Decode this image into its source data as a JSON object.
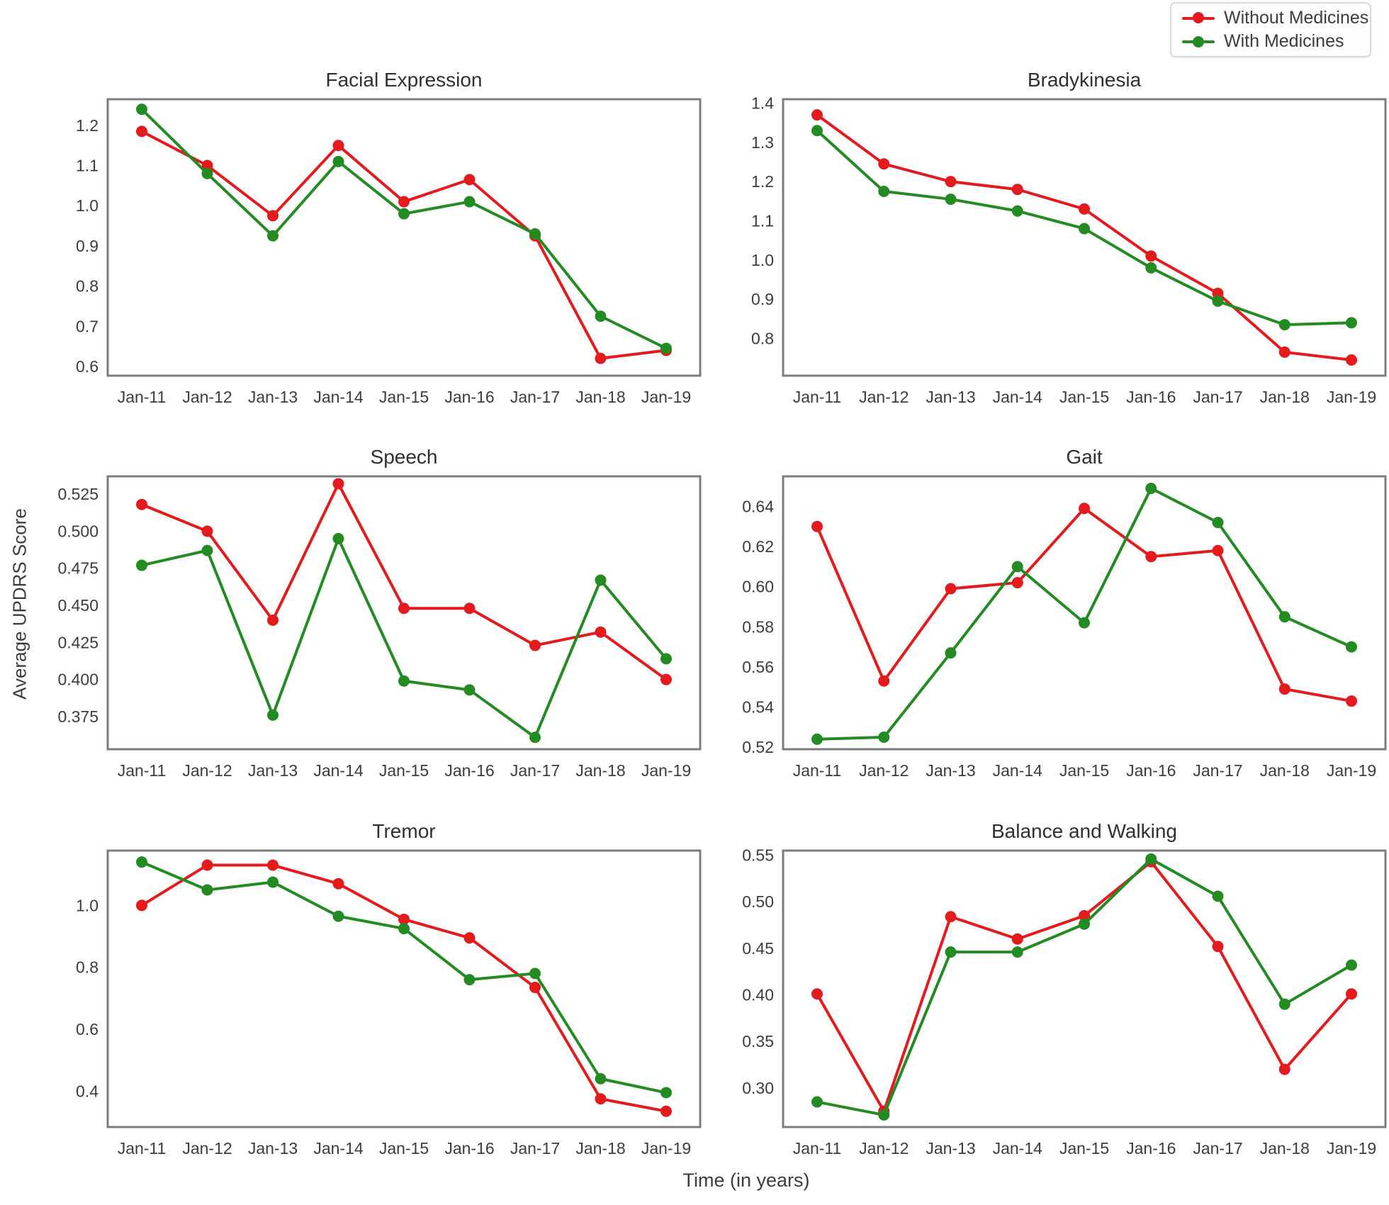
{
  "figure": {
    "background": "#ffffff",
    "legend": {
      "items": [
        {
          "label": "Without Medicines",
          "color": "#e41a1c"
        },
        {
          "label": "With Medicines",
          "color": "#228b22"
        }
      ],
      "position": "top-right"
    },
    "axes": {
      "y_label": "Average UPDRS Score",
      "x_label": "Time (in years)"
    }
  },
  "chart_data": [
    {
      "type": "line",
      "title": "Facial Expression",
      "categories": [
        "Jan-11",
        "Jan-12",
        "Jan-13",
        "Jan-14",
        "Jan-15",
        "Jan-16",
        "Jan-17",
        "Jan-18",
        "Jan-19"
      ],
      "yticks": [
        "1.2",
        "1.1",
        "1.0",
        "0.9",
        "0.8",
        "0.7",
        "0.6"
      ],
      "ylim": [
        0.577,
        1.265
      ],
      "grid": false,
      "series": [
        {
          "name": "Without Medicines",
          "color": "#e41a1c",
          "values": [
            1.185,
            1.1,
            0.975,
            1.15,
            1.01,
            1.065,
            0.925,
            0.62,
            0.64
          ]
        },
        {
          "name": "With Medicines",
          "color": "#228b22",
          "values": [
            1.24,
            1.08,
            0.925,
            1.11,
            0.98,
            1.01,
            0.93,
            0.725,
            0.645
          ]
        }
      ]
    },
    {
      "type": "line",
      "title": "Bradykinesia",
      "categories": [
        "Jan-11",
        "Jan-12",
        "Jan-13",
        "Jan-14",
        "Jan-15",
        "Jan-16",
        "Jan-17",
        "Jan-18",
        "Jan-19"
      ],
      "yticks": [
        "1.4",
        "1.3",
        "1.2",
        "1.1",
        "1.0",
        "0.9",
        "0.8"
      ],
      "ylim": [
        0.705,
        1.41
      ],
      "grid": false,
      "series": [
        {
          "name": "Without Medicines",
          "color": "#e41a1c",
          "values": [
            1.37,
            1.245,
            1.2,
            1.18,
            1.13,
            1.01,
            0.915,
            0.765,
            0.745
          ]
        },
        {
          "name": "With Medicines",
          "color": "#228b22",
          "values": [
            1.33,
            1.175,
            1.155,
            1.125,
            1.08,
            0.98,
            0.895,
            0.835,
            0.84
          ]
        }
      ]
    },
    {
      "type": "line",
      "title": "Speech",
      "categories": [
        "Jan-11",
        "Jan-12",
        "Jan-13",
        "Jan-14",
        "Jan-15",
        "Jan-16",
        "Jan-17",
        "Jan-18",
        "Jan-19"
      ],
      "yticks": [
        "0.525",
        "0.500",
        "0.475",
        "0.450",
        "0.425",
        "0.400",
        "0.375"
      ],
      "ylim": [
        0.353,
        0.537
      ],
      "grid": false,
      "series": [
        {
          "name": "Without Medicines",
          "color": "#e41a1c",
          "values": [
            0.518,
            0.5,
            0.44,
            0.532,
            0.448,
            0.448,
            0.423,
            0.432,
            0.4
          ]
        },
        {
          "name": "With Medicines",
          "color": "#228b22",
          "values": [
            0.477,
            0.487,
            0.376,
            0.495,
            0.399,
            0.393,
            0.361,
            0.467,
            0.414
          ]
        }
      ]
    },
    {
      "type": "line",
      "title": "Gait",
      "categories": [
        "Jan-11",
        "Jan-12",
        "Jan-13",
        "Jan-14",
        "Jan-15",
        "Jan-16",
        "Jan-17",
        "Jan-18",
        "Jan-19"
      ],
      "yticks": [
        "0.64",
        "0.62",
        "0.60",
        "0.58",
        "0.56",
        "0.54",
        "0.52"
      ],
      "ylim": [
        0.519,
        0.655
      ],
      "grid": false,
      "series": [
        {
          "name": "Without Medicines",
          "color": "#e41a1c",
          "values": [
            0.63,
            0.553,
            0.599,
            0.602,
            0.639,
            0.615,
            0.618,
            0.549,
            0.543
          ]
        },
        {
          "name": "With Medicines",
          "color": "#228b22",
          "values": [
            0.524,
            0.525,
            0.567,
            0.61,
            0.582,
            0.649,
            0.632,
            0.585,
            0.57
          ]
        }
      ]
    },
    {
      "type": "line",
      "title": "Tremor",
      "categories": [
        "Jan-11",
        "Jan-12",
        "Jan-13",
        "Jan-14",
        "Jan-15",
        "Jan-16",
        "Jan-17",
        "Jan-18",
        "Jan-19"
      ],
      "yticks": [
        "1.0",
        "0.8",
        "0.6",
        "0.4"
      ],
      "ylim": [
        0.284,
        1.177
      ],
      "grid": false,
      "series": [
        {
          "name": "Without Medicines",
          "color": "#e41a1c",
          "values": [
            1.0,
            1.13,
            1.13,
            1.07,
            0.955,
            0.895,
            0.735,
            0.375,
            0.335
          ]
        },
        {
          "name": "With Medicines",
          "color": "#228b22",
          "values": [
            1.14,
            1.05,
            1.075,
            0.965,
            0.925,
            0.76,
            0.78,
            0.44,
            0.395
          ]
        }
      ]
    },
    {
      "type": "line",
      "title": "Balance and Walking",
      "categories": [
        "Jan-11",
        "Jan-12",
        "Jan-13",
        "Jan-14",
        "Jan-15",
        "Jan-16",
        "Jan-17",
        "Jan-18",
        "Jan-19"
      ],
      "yticks": [
        "0.55",
        "0.50",
        "0.45",
        "0.40",
        "0.35",
        "0.30"
      ],
      "ylim": [
        0.258,
        0.555
      ],
      "grid": false,
      "series": [
        {
          "name": "Without Medicines",
          "color": "#e41a1c",
          "values": [
            0.401,
            0.275,
            0.484,
            0.46,
            0.485,
            0.543,
            0.452,
            0.32,
            0.401
          ]
        },
        {
          "name": "With Medicines",
          "color": "#228b22",
          "values": [
            0.285,
            0.271,
            0.446,
            0.446,
            0.476,
            0.546,
            0.506,
            0.39,
            0.432
          ]
        }
      ]
    }
  ]
}
